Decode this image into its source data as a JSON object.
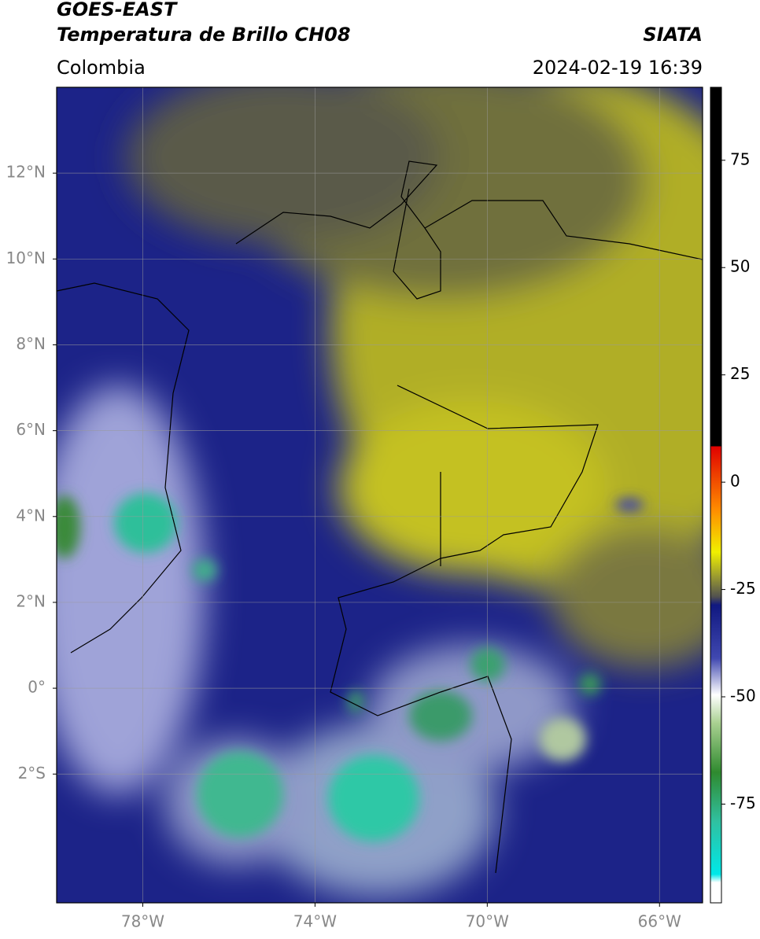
{
  "header": {
    "title": "GOES-EAST",
    "subtitle": "Temperatura de Brillo CH08",
    "source": "SIATA",
    "region": "Colombia",
    "datetime": "2024-02-19 16:39"
  },
  "map": {
    "xlim": [
      -80,
      -65
    ],
    "ylim": [
      -5,
      14
    ],
    "xticks": [
      {
        "value": -78,
        "label": "78°W"
      },
      {
        "value": -74,
        "label": "74°W"
      },
      {
        "value": -70,
        "label": "70°W"
      },
      {
        "value": -66,
        "label": "66°W"
      }
    ],
    "yticks": [
      {
        "value": -2,
        "label": "2°S"
      },
      {
        "value": 0,
        "label": "0°"
      },
      {
        "value": 2,
        "label": "2°N"
      },
      {
        "value": 4,
        "label": "4°N"
      },
      {
        "value": 6,
        "label": "6°N"
      },
      {
        "value": 8,
        "label": "8°N"
      },
      {
        "value": 10,
        "label": "10°N"
      },
      {
        "value": 12,
        "label": "12°N"
      }
    ],
    "grid": true
  },
  "colorbar": {
    "lim": [
      -98,
      92
    ],
    "ticks": [
      -75,
      -50,
      -25,
      0,
      25,
      50,
      75
    ]
  }
}
